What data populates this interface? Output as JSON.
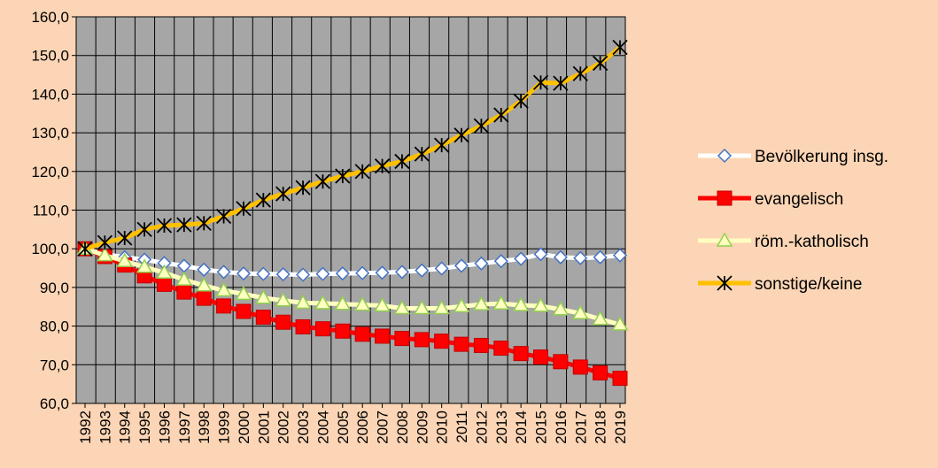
{
  "colors": {
    "background": "#FBD5B5",
    "plot_area": "#A6A6A6",
    "grid": "#000000"
  },
  "chart_data": {
    "type": "line",
    "title": "",
    "xlabel": "",
    "ylabel": "",
    "ylim": [
      60,
      160
    ],
    "y_ticks": [
      "60,0",
      "70,0",
      "80,0",
      "90,0",
      "100,0",
      "110,0",
      "120,0",
      "130,0",
      "140,0",
      "150,0",
      "160,0"
    ],
    "grid": true,
    "legend_position": "right",
    "categories": [
      "1992",
      "1993",
      "1994",
      "1995",
      "1996",
      "1997",
      "1998",
      "1999",
      "2000",
      "2001",
      "2002",
      "2003",
      "2004",
      "2005",
      "2006",
      "2007",
      "2008",
      "2009",
      "2010",
      "2011",
      "2012",
      "2013",
      "2014",
      "2015",
      "2016",
      "2017",
      "2018",
      "2019"
    ],
    "series": [
      {
        "name": "Bevölkerung insg.",
        "line_color": "#FFFFFF",
        "marker": "diamond",
        "marker_fill": "#FFFFFF",
        "marker_stroke": "#4472C4",
        "values": [
          100,
          98.6,
          97.8,
          97.2,
          96.3,
          95.6,
          94.6,
          94.0,
          93.6,
          93.5,
          93.4,
          93.3,
          93.5,
          93.6,
          93.7,
          93.8,
          94.0,
          94.4,
          94.9,
          95.6,
          96.2,
          96.8,
          97.4,
          98.6,
          97.8,
          97.6,
          97.8,
          98.3
        ]
      },
      {
        "name": "evangelisch",
        "line_color": "#FF0000",
        "marker": "square",
        "marker_fill": "#FF0000",
        "marker_stroke": "#C00000",
        "values": [
          100,
          98.0,
          95.8,
          93.0,
          90.8,
          88.8,
          87.2,
          85.2,
          83.8,
          82.3,
          81.0,
          79.8,
          79.3,
          78.7,
          77.9,
          77.4,
          76.8,
          76.5,
          76.1,
          75.3,
          75.0,
          74.3,
          72.9,
          72.0,
          70.8,
          69.4,
          67.9,
          66.5
        ]
      },
      {
        "name": "röm.-katholisch",
        "line_color": "#FFFFC0",
        "marker": "triangle",
        "marker_fill": "#FFFFC0",
        "marker_stroke": "#92D050",
        "values": [
          100,
          98.3,
          96.8,
          95.3,
          93.8,
          92.0,
          90.5,
          89.2,
          88.3,
          87.3,
          86.6,
          86.0,
          85.9,
          85.7,
          85.5,
          85.3,
          84.6,
          84.6,
          84.6,
          85.1,
          85.6,
          85.8,
          85.4,
          85.2,
          84.3,
          83.3,
          81.8,
          80.4
        ]
      },
      {
        "name": "sonstige/keine",
        "line_color": "#FFC000",
        "marker": "star",
        "marker_stroke": "#000000",
        "values": [
          100,
          101.6,
          102.8,
          105.0,
          106.0,
          106.2,
          106.6,
          108.4,
          110.4,
          112.6,
          114.2,
          115.8,
          117.4,
          118.8,
          120.0,
          121.4,
          122.6,
          124.5,
          126.8,
          129.4,
          131.8,
          134.6,
          138.2,
          143.0,
          142.8,
          145.3,
          148.0,
          152.1
        ]
      }
    ]
  }
}
